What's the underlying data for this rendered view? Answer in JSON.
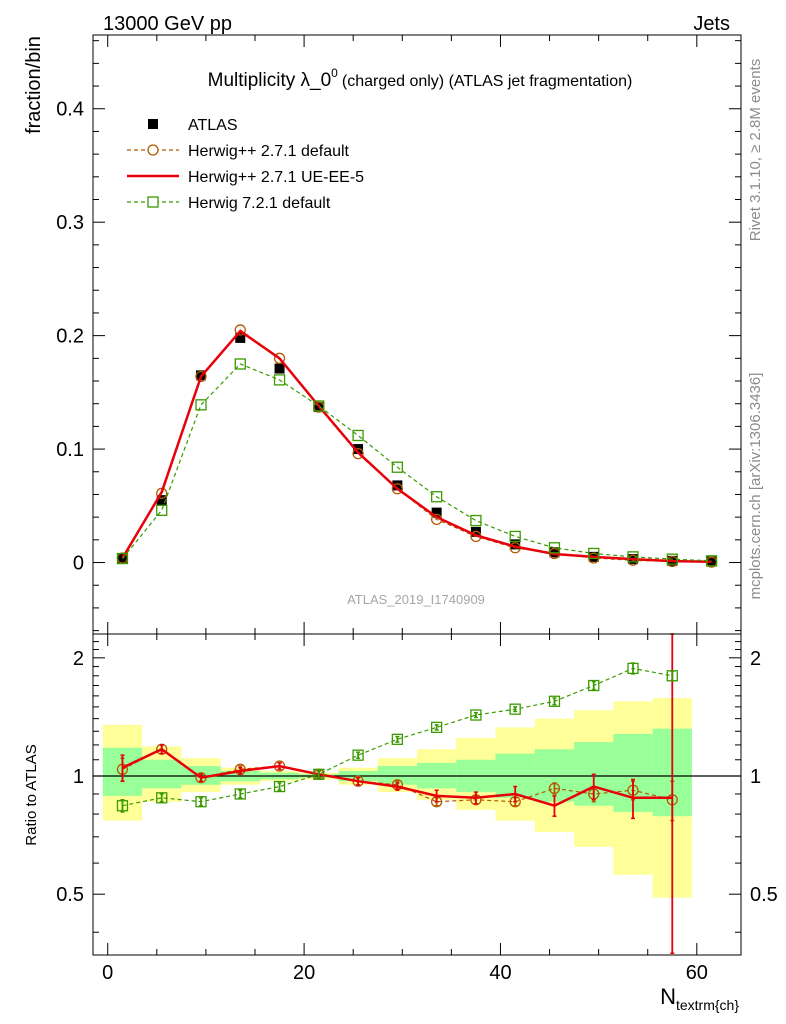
{
  "header": {
    "left": "13000 GeV pp",
    "right": "Jets"
  },
  "side_labels": {
    "rivet": "Rivet 3.1.10, ≥ 2.8M events",
    "mcplots": "mcplots.cern.ch [arXiv:1306.3436]"
  },
  "chart_data": [
    {
      "type": "scatter",
      "title": "Multiplicity λ_0",
      "title_superscript": "0",
      "title_suffix": "(charged only) (ATLAS jet fragmentation)",
      "watermark": "ATLAS_2019_I1740909",
      "ylabel": "fraction/bin",
      "xlim": [
        -1.5,
        64.5
      ],
      "ylim": [
        -0.063,
        0.465
      ],
      "yticks": [
        0,
        0.1,
        0.2,
        0.3,
        0.4
      ],
      "ytick_labels": [
        "0",
        "0.1",
        "0.2",
        "0.3",
        "0.4"
      ],
      "legend": {
        "position": "top-left"
      },
      "x": [
        1.5,
        5.5,
        9.5,
        13.5,
        17.5,
        21.5,
        25.5,
        29.5,
        33.5,
        37.5,
        41.5,
        45.5,
        49.5,
        53.5,
        57.5,
        61.5
      ],
      "series": [
        {
          "name": "ATLAS",
          "marker": "filled-square",
          "color": "#000000",
          "values": [
            0.004,
            0.055,
            0.165,
            0.198,
            0.171,
            0.137,
            0.1,
            0.068,
            0.044,
            0.027,
            0.016,
            0.009,
            0.005,
            0.003,
            0.0015,
            0.0008
          ]
        },
        {
          "name": "Herwig++ 2.7.1 default",
          "marker": "open-circle",
          "line": "dashed",
          "color": "#b35900",
          "values": [
            0.004,
            0.061,
            0.164,
            0.205,
            0.18,
            0.137,
            0.096,
            0.065,
            0.038,
            0.023,
            0.013,
            0.008,
            0.004,
            0.002,
            0.0009,
            0.0004
          ]
        },
        {
          "name": "Herwig++ 2.7.1 UE-EE-5",
          "marker": "none",
          "line": "solid",
          "color": "#e8000b",
          "values": [
            0.004,
            0.062,
            0.164,
            0.204,
            0.18,
            0.138,
            0.097,
            0.065,
            0.04,
            0.024,
            0.014,
            0.0075,
            0.005,
            0.003,
            0.0013,
            0.0007
          ]
        },
        {
          "name": "Herwig 7.2.1 default",
          "marker": "open-square",
          "line": "dashed",
          "color": "#3a9a00",
          "values": [
            0.0035,
            0.046,
            0.139,
            0.175,
            0.161,
            0.138,
            0.112,
            0.084,
            0.058,
            0.037,
            0.023,
            0.013,
            0.008,
            0.005,
            0.003,
            0.0015
          ]
        }
      ]
    },
    {
      "type": "scatter",
      "ylabel": "Ratio to ATLAS",
      "xlabel": "N",
      "xlabel_sub": "textrm{ch}",
      "xlim": [
        -1.5,
        64.5
      ],
      "ylim": [
        0.35,
        2.3
      ],
      "yscale": "log",
      "yticks": [
        0.5,
        1,
        2
      ],
      "ytick_labels": [
        "0.5",
        "1",
        "2"
      ],
      "xticks": [
        0,
        20,
        40,
        60
      ],
      "xtick_labels": [
        "0",
        "20",
        "40",
        "60"
      ],
      "reference_line": 1,
      "x": [
        1.5,
        5.5,
        9.5,
        13.5,
        17.5,
        21.5,
        25.5,
        29.5,
        33.5,
        37.5,
        41.5,
        45.5,
        49.5,
        53.5,
        57.5
      ],
      "uncertainty_bands": {
        "bin_edges": [
          -0.5,
          3.5,
          7.5,
          11.5,
          15.5,
          19.5,
          23.5,
          27.5,
          31.5,
          35.5,
          39.5,
          43.5,
          47.5,
          51.5,
          55.5,
          59.5
        ],
        "stat": {
          "color": "#99ff99",
          "low": [
            0.89,
            0.93,
            0.95,
            0.97,
            0.98,
            0.99,
            0.97,
            0.95,
            0.93,
            0.91,
            0.88,
            0.86,
            0.84,
            0.81,
            0.79
          ],
          "high": [
            1.18,
            1.1,
            1.06,
            1.03,
            1.02,
            1.01,
            1.03,
            1.06,
            1.08,
            1.1,
            1.14,
            1.17,
            1.22,
            1.28,
            1.32
          ]
        },
        "syst": {
          "color": "#ffff99",
          "low": [
            0.77,
            0.86,
            0.91,
            0.95,
            0.97,
            0.98,
            0.95,
            0.91,
            0.87,
            0.82,
            0.77,
            0.72,
            0.66,
            0.56,
            0.49
          ],
          "high": [
            1.35,
            1.19,
            1.11,
            1.05,
            1.03,
            1.02,
            1.05,
            1.11,
            1.17,
            1.25,
            1.33,
            1.4,
            1.47,
            1.55,
            1.58
          ]
        }
      },
      "series": [
        {
          "name": "Herwig++ 2.7.1 default",
          "color": "#b35900",
          "values": [
            1.04,
            1.17,
            0.99,
            1.04,
            1.06,
            1.01,
            0.97,
            0.95,
            0.86,
            0.87,
            0.86,
            0.93,
            0.9,
            0.92,
            0.87
          ],
          "errors": [
            0.07,
            0.03,
            0.02,
            0.02,
            0.02,
            0.02,
            0.02,
            0.02,
            0.02,
            0.02,
            0.02,
            0.03,
            0.04,
            0.05,
            0.1
          ]
        },
        {
          "name": "Herwig++ 2.7.1 UE-EE-5",
          "color": "#e8000b",
          "values": [
            1.05,
            1.17,
            0.99,
            1.03,
            1.06,
            1.01,
            0.97,
            0.94,
            0.89,
            0.88,
            0.9,
            0.84,
            0.94,
            0.88,
            0.88
          ],
          "errors": [
            0.08,
            0.03,
            0.02,
            0.02,
            0.02,
            0.02,
            0.02,
            0.02,
            0.03,
            0.03,
            0.04,
            0.05,
            0.07,
            0.1,
            1.6
          ]
        },
        {
          "name": "Herwig 7.2.1 default",
          "color": "#3a9a00",
          "values": [
            0.84,
            0.88,
            0.86,
            0.9,
            0.94,
            1.01,
            1.13,
            1.24,
            1.33,
            1.43,
            1.48,
            1.55,
            1.7,
            1.88,
            1.8
          ],
          "errors": [
            0.03,
            0.02,
            0.02,
            0.02,
            0.02,
            0.02,
            0.02,
            0.02,
            0.02,
            0.02,
            0.02,
            0.03,
            0.04,
            0.06,
            0.05
          ]
        }
      ]
    }
  ]
}
